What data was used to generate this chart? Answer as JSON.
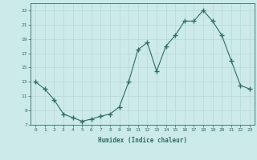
{
  "x": [
    0,
    1,
    2,
    3,
    4,
    5,
    6,
    7,
    8,
    9,
    10,
    11,
    12,
    13,
    14,
    15,
    16,
    17,
    18,
    19,
    20,
    21,
    22,
    23
  ],
  "y": [
    13,
    12,
    10.5,
    8.5,
    8,
    7.5,
    7.8,
    8.2,
    8.5,
    9.5,
    13,
    17.5,
    18.5,
    14.5,
    18,
    19.5,
    21.5,
    21.5,
    23,
    21.5,
    19.5,
    16,
    12.5,
    12
  ],
  "line_color": "#2d6e63",
  "marker": "+",
  "marker_size": 4,
  "bg_color": "#cceae8",
  "grid_color": "#b8d8d5",
  "xlabel": "Humidex (Indice chaleur)",
  "ylim": [
    7,
    24
  ],
  "xlim": [
    -0.5,
    23.5
  ],
  "yticks": [
    7,
    9,
    11,
    13,
    15,
    17,
    19,
    21,
    23
  ],
  "xticks": [
    0,
    1,
    2,
    3,
    4,
    5,
    6,
    7,
    8,
    9,
    10,
    11,
    12,
    13,
    14,
    15,
    16,
    17,
    18,
    19,
    20,
    21,
    22,
    23
  ]
}
